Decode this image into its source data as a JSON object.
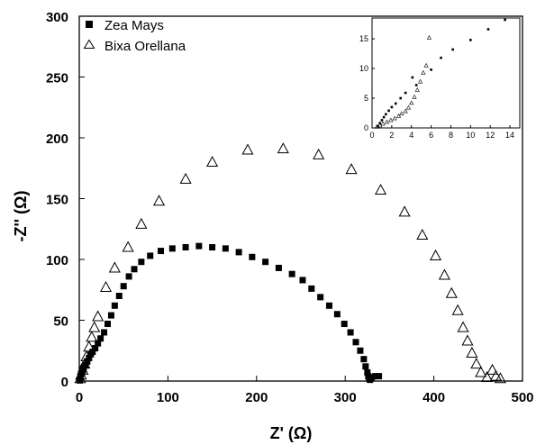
{
  "chart_data": [
    {
      "type": "scatter",
      "title": "",
      "xlabel": "Z' (Ω)",
      "ylabel": "-Z'' (Ω)",
      "xlim": [
        0,
        500
      ],
      "ylim": [
        0,
        300
      ],
      "xticks": [
        "0",
        "100",
        "200",
        "300",
        "400",
        "500"
      ],
      "yticks": [
        "0",
        "50",
        "100",
        "150",
        "200",
        "250",
        "300"
      ],
      "legend": "top-left",
      "series": [
        {
          "name": "Zea Mays",
          "marker": "filled-square",
          "color": "#000000",
          "points": [
            [
              0.5,
              0.5
            ],
            [
              1,
              2
            ],
            [
              1.5,
              4
            ],
            [
              2,
              6
            ],
            [
              3,
              7
            ],
            [
              4,
              9
            ],
            [
              5,
              11
            ],
            [
              7,
              13
            ],
            [
              9,
              16
            ],
            [
              11,
              19
            ],
            [
              13,
              22
            ],
            [
              15,
              24
            ],
            [
              18,
              27
            ],
            [
              21,
              31
            ],
            [
              24,
              35
            ],
            [
              28,
              40
            ],
            [
              32,
              47
            ],
            [
              36,
              54
            ],
            [
              40,
              62
            ],
            [
              45,
              70
            ],
            [
              50,
              78
            ],
            [
              56,
              86
            ],
            [
              62,
              92
            ],
            [
              70,
              98
            ],
            [
              80,
              103
            ],
            [
              92,
              107
            ],
            [
              105,
              109
            ],
            [
              120,
              110
            ],
            [
              135,
              111
            ],
            [
              150,
              110
            ],
            [
              165,
              109
            ],
            [
              180,
              106
            ],
            [
              195,
              102
            ],
            [
              210,
              98
            ],
            [
              225,
              93
            ],
            [
              240,
              88
            ],
            [
              252,
              83
            ],
            [
              262,
              76
            ],
            [
              272,
              69
            ],
            [
              282,
              62
            ],
            [
              291,
              55
            ],
            [
              299,
              47
            ],
            [
              306,
              40
            ],
            [
              312,
              32
            ],
            [
              317,
              25
            ],
            [
              321,
              18
            ],
            [
              323,
              12
            ],
            [
              325,
              7
            ],
            [
              326,
              4
            ],
            [
              327,
              2
            ],
            [
              328,
              1
            ],
            [
              330,
              3
            ],
            [
              334,
              4
            ],
            [
              338,
              4
            ]
          ]
        },
        {
          "name": "Bixa Orellana",
          "marker": "open-triangle",
          "color": "#000000",
          "points": [
            [
              1,
              2
            ],
            [
              2,
              5
            ],
            [
              4,
              9
            ],
            [
              6,
              14
            ],
            [
              8,
              20
            ],
            [
              11,
              28
            ],
            [
              14,
              36
            ],
            [
              17,
              44
            ],
            [
              21,
              53
            ],
            [
              30,
              77
            ],
            [
              40,
              93
            ],
            [
              55,
              110
            ],
            [
              70,
              129
            ],
            [
              90,
              148
            ],
            [
              120,
              166
            ],
            [
              150,
              180
            ],
            [
              190,
              190
            ],
            [
              230,
              191
            ],
            [
              270,
              186
            ],
            [
              307,
              174
            ],
            [
              340,
              157
            ],
            [
              367,
              139
            ],
            [
              387,
              120
            ],
            [
              402,
              103
            ],
            [
              412,
              87
            ],
            [
              420,
              72
            ],
            [
              427,
              58
            ],
            [
              433,
              44
            ],
            [
              438,
              33
            ],
            [
              443,
              23
            ],
            [
              448,
              14
            ],
            [
              453,
              7
            ],
            [
              460,
              3
            ],
            [
              466,
              9
            ],
            [
              470,
              4
            ],
            [
              475,
              2
            ]
          ]
        }
      ]
    },
    {
      "type": "scatter",
      "title": "",
      "xlabel": "",
      "ylabel": "",
      "xlim": [
        0,
        15
      ],
      "ylim": [
        0,
        18.5
      ],
      "xticks": [
        "0",
        "2",
        "4",
        "6",
        "8",
        "10",
        "12",
        "14"
      ],
      "yticks": [
        "0",
        "5",
        "10",
        "15"
      ],
      "series": [
        {
          "marker": "filled-square",
          "color": "#000000",
          "points": [
            [
              0.6,
              0.3
            ],
            [
              0.8,
              0.8
            ],
            [
              1.0,
              1.3
            ],
            [
              1.2,
              1.8
            ],
            [
              1.4,
              2.3
            ],
            [
              1.7,
              2.9
            ],
            [
              2.0,
              3.5
            ],
            [
              2.4,
              4.1
            ],
            [
              2.9,
              5.0
            ],
            [
              3.4,
              5.9
            ],
            [
              4.1,
              8.5
            ],
            [
              4.5,
              7.2
            ],
            [
              6.0,
              9.8
            ],
            [
              7.0,
              11.8
            ],
            [
              8.2,
              13.2
            ],
            [
              10.0,
              14.8
            ],
            [
              11.8,
              16.6
            ],
            [
              13.5,
              18.2
            ]
          ]
        },
        {
          "marker": "open-triangle",
          "color": "#000000",
          "points": [
            [
              0.5,
              0.2
            ],
            [
              0.8,
              0.4
            ],
            [
              1.1,
              0.7
            ],
            [
              1.5,
              1.0
            ],
            [
              1.9,
              1.3
            ],
            [
              2.3,
              1.6
            ],
            [
              2.7,
              2.0
            ],
            [
              3.0,
              2.4
            ],
            [
              3.4,
              2.8
            ],
            [
              3.7,
              3.4
            ],
            [
              4.0,
              4.2
            ],
            [
              4.3,
              5.2
            ],
            [
              4.6,
              6.4
            ],
            [
              4.9,
              7.8
            ],
            [
              5.2,
              9.3
            ],
            [
              5.5,
              10.5
            ],
            [
              5.8,
              15.2
            ]
          ]
        }
      ]
    }
  ]
}
